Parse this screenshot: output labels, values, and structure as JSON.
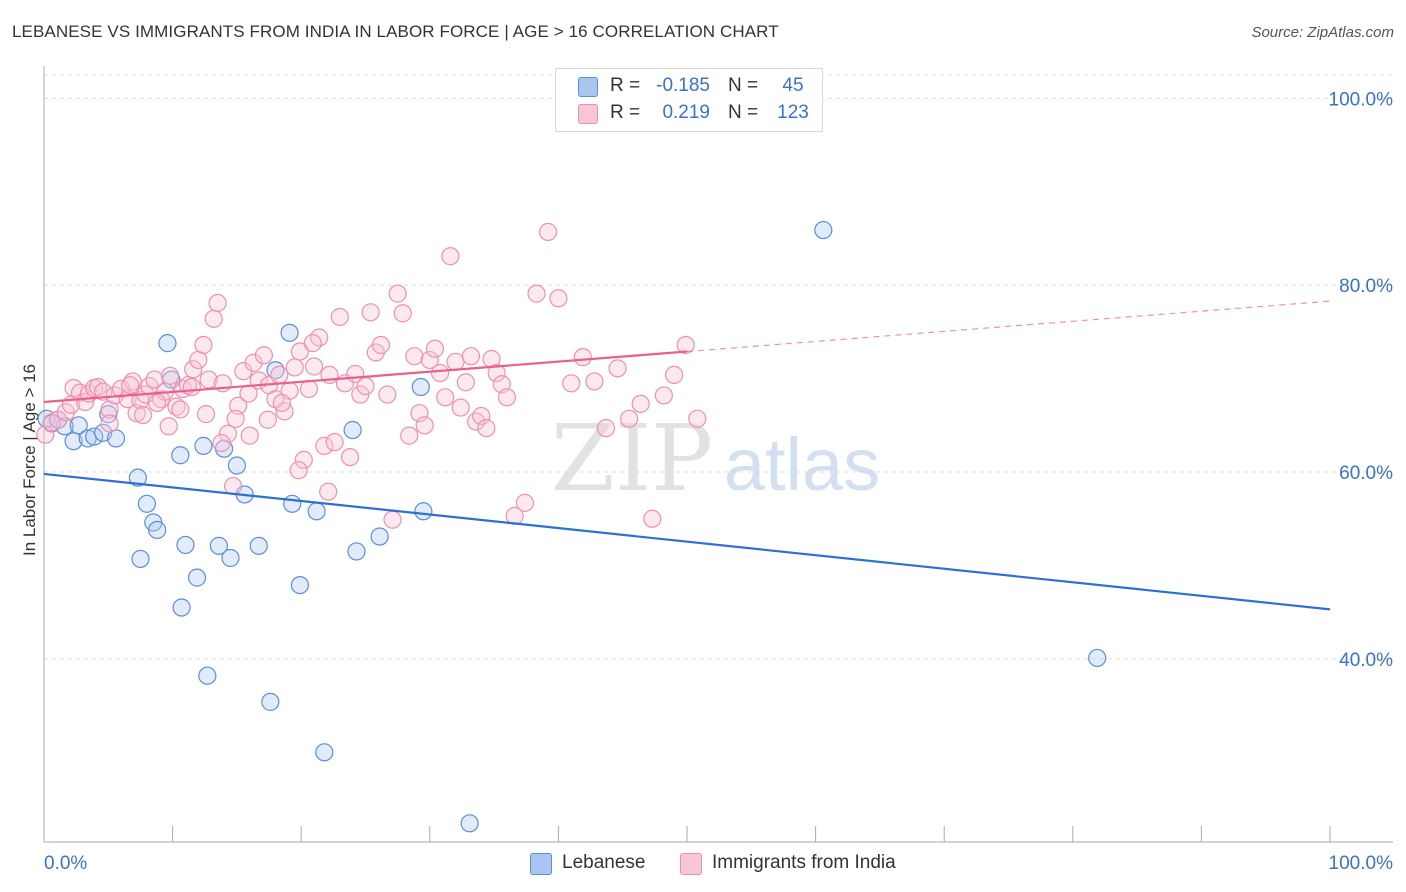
{
  "title": "LEBANESE VS IMMIGRANTS FROM INDIA IN LABOR FORCE | AGE > 16 CORRELATION CHART",
  "source": "Source: ZipAtlas.com",
  "watermark": {
    "zip": "ZIP",
    "atlas": "atlas"
  },
  "legend": {
    "rows": [
      {
        "r_label": "R =",
        "r_value": "-0.185",
        "n_label": "N =",
        "n_value": "45"
      },
      {
        "r_label": "R =",
        "r_value": "0.219",
        "n_label": "N =",
        "n_value": "123"
      }
    ]
  },
  "chart_data": {
    "type": "scatter",
    "title": "LEBANESE VS IMMIGRANTS FROM INDIA IN LABOR FORCE | AGE > 16 CORRELATION CHART",
    "xlabel": "",
    "ylabel": "In Labor Force | Age > 16",
    "xlim": [
      0,
      100
    ],
    "ylim": [
      20.4,
      102.5
    ],
    "x_tick_labels": [
      "0.0%",
      "100.0%"
    ],
    "y_ticks": [
      40,
      60,
      80,
      100
    ],
    "y_tick_labels": [
      "40.0%",
      "60.0%",
      "80.0%",
      "100.0%"
    ],
    "grid": true,
    "legend_position": "bottom",
    "colors": {
      "blue": "#5b8fd6",
      "pink": "#ef8fb0",
      "blue_line": "#2e6fd3",
      "pink_line": "#e8608f",
      "tick_text": "#3a72c8"
    },
    "series": [
      {
        "name": "Lebanese",
        "color": "#5b8fd6",
        "R": -0.185,
        "N": 45,
        "trend": {
          "x": [
            0,
            100
          ],
          "y": [
            59.8,
            45.3
          ]
        },
        "points": [
          [
            0.2,
            65.7
          ],
          [
            0.6,
            65.2
          ],
          [
            1.1,
            65.6
          ],
          [
            1.6,
            64.9
          ],
          [
            2.3,
            63.3
          ],
          [
            2.7,
            65.0
          ],
          [
            3.4,
            63.6
          ],
          [
            3.9,
            63.8
          ],
          [
            4.6,
            64.2
          ],
          [
            5.0,
            66.2
          ],
          [
            5.6,
            63.6
          ],
          [
            7.3,
            59.4
          ],
          [
            7.5,
            50.7
          ],
          [
            8.0,
            56.6
          ],
          [
            8.5,
            54.6
          ],
          [
            8.8,
            53.8
          ],
          [
            9.9,
            69.9
          ],
          [
            9.6,
            73.8
          ],
          [
            10.6,
            61.8
          ],
          [
            11.0,
            52.2
          ],
          [
            10.7,
            45.5
          ],
          [
            11.9,
            48.7
          ],
          [
            12.4,
            62.8
          ],
          [
            12.7,
            38.2
          ],
          [
            13.6,
            52.1
          ],
          [
            14.0,
            62.5
          ],
          [
            14.5,
            50.8
          ],
          [
            15.0,
            60.7
          ],
          [
            15.6,
            57.6
          ],
          [
            16.7,
            52.1
          ],
          [
            17.6,
            35.4
          ],
          [
            18.0,
            70.9
          ],
          [
            19.1,
            74.9
          ],
          [
            19.3,
            56.6
          ],
          [
            19.9,
            47.9
          ],
          [
            21.2,
            55.8
          ],
          [
            21.8,
            30.0
          ],
          [
            24.0,
            64.5
          ],
          [
            24.3,
            51.5
          ],
          [
            26.1,
            53.1
          ],
          [
            29.3,
            69.1
          ],
          [
            29.5,
            55.8
          ],
          [
            33.1,
            22.4
          ],
          [
            60.6,
            85.9
          ],
          [
            81.9,
            40.1
          ]
        ]
      },
      {
        "name": "Immigrants from India",
        "color": "#ef8fb0",
        "R": 0.219,
        "N": 123,
        "trend": {
          "x": [
            0,
            50
          ],
          "y": [
            67.5,
            72.9
          ],
          "dashed_to": {
            "x": 100,
            "y": 78.3
          }
        },
        "points": [
          [
            0.1,
            64.0
          ],
          [
            0.6,
            65.3
          ],
          [
            1.1,
            65.6
          ],
          [
            1.7,
            66.4
          ],
          [
            2.1,
            67.2
          ],
          [
            2.3,
            69.0
          ],
          [
            2.8,
            68.5
          ],
          [
            3.2,
            67.5
          ],
          [
            3.5,
            68.4
          ],
          [
            3.9,
            69.0
          ],
          [
            4.2,
            69.1
          ],
          [
            4.6,
            68.6
          ],
          [
            5.1,
            66.7
          ],
          [
            5.5,
            68.2
          ],
          [
            6.0,
            68.9
          ],
          [
            6.5,
            67.8
          ],
          [
            6.9,
            69.7
          ],
          [
            7.2,
            66.3
          ],
          [
            7.5,
            67.7
          ],
          [
            7.9,
            68.3
          ],
          [
            8.2,
            69.2
          ],
          [
            8.6,
            69.9
          ],
          [
            9.1,
            67.8
          ],
          [
            9.4,
            68.6
          ],
          [
            9.8,
            70.3
          ],
          [
            10.3,
            67.0
          ],
          [
            10.8,
            68.9
          ],
          [
            11.2,
            69.3
          ],
          [
            11.6,
            71.0
          ],
          [
            12.0,
            72.0
          ],
          [
            12.4,
            73.6
          ],
          [
            12.8,
            69.9
          ],
          [
            13.2,
            76.4
          ],
          [
            13.5,
            78.1
          ],
          [
            13.9,
            69.5
          ],
          [
            14.3,
            64.1
          ],
          [
            14.7,
            58.5
          ],
          [
            15.1,
            67.1
          ],
          [
            15.5,
            70.8
          ],
          [
            15.9,
            68.4
          ],
          [
            16.3,
            71.7
          ],
          [
            16.7,
            69.8
          ],
          [
            17.1,
            72.5
          ],
          [
            17.5,
            69.3
          ],
          [
            18.0,
            67.8
          ],
          [
            18.3,
            70.4
          ],
          [
            18.7,
            66.5
          ],
          [
            19.1,
            68.7
          ],
          [
            19.5,
            71.2
          ],
          [
            19.9,
            72.9
          ],
          [
            20.2,
            61.3
          ],
          [
            20.6,
            68.9
          ],
          [
            21.0,
            71.3
          ],
          [
            21.4,
            74.4
          ],
          [
            21.8,
            62.8
          ],
          [
            22.2,
            70.4
          ],
          [
            22.6,
            63.2
          ],
          [
            23.0,
            76.6
          ],
          [
            23.4,
            69.5
          ],
          [
            23.8,
            61.6
          ],
          [
            24.2,
            70.5
          ],
          [
            24.6,
            68.3
          ],
          [
            25.0,
            69.2
          ],
          [
            25.4,
            77.1
          ],
          [
            25.8,
            72.8
          ],
          [
            26.2,
            73.6
          ],
          [
            26.7,
            68.3
          ],
          [
            27.1,
            54.9
          ],
          [
            27.5,
            79.1
          ],
          [
            27.9,
            77.0
          ],
          [
            28.4,
            63.9
          ],
          [
            28.8,
            72.4
          ],
          [
            29.2,
            66.3
          ],
          [
            29.6,
            65.0
          ],
          [
            30.0,
            72.0
          ],
          [
            30.4,
            73.2
          ],
          [
            30.8,
            70.6
          ],
          [
            31.2,
            68.0
          ],
          [
            31.6,
            83.1
          ],
          [
            32.0,
            71.8
          ],
          [
            32.4,
            66.9
          ],
          [
            32.8,
            69.6
          ],
          [
            33.2,
            72.4
          ],
          [
            33.6,
            65.4
          ],
          [
            34.0,
            66.0
          ],
          [
            34.4,
            64.7
          ],
          [
            34.8,
            72.1
          ],
          [
            35.2,
            70.6
          ],
          [
            35.6,
            69.4
          ],
          [
            36.0,
            68.0
          ],
          [
            36.6,
            55.3
          ],
          [
            37.4,
            56.7
          ],
          [
            38.3,
            79.1
          ],
          [
            39.2,
            85.7
          ],
          [
            40.0,
            78.6
          ],
          [
            41.0,
            69.5
          ],
          [
            41.9,
            72.3
          ],
          [
            42.8,
            69.7
          ],
          [
            43.7,
            64.7
          ],
          [
            44.6,
            71.1
          ],
          [
            45.5,
            65.7
          ],
          [
            46.4,
            67.3
          ],
          [
            47.3,
            55.0
          ],
          [
            48.2,
            68.2
          ],
          [
            49.0,
            70.4
          ],
          [
            49.9,
            73.6
          ],
          [
            50.8,
            65.7
          ],
          [
            5.1,
            65.2
          ],
          [
            6.7,
            69.3
          ],
          [
            7.7,
            66.1
          ],
          [
            8.8,
            67.4
          ],
          [
            9.7,
            64.9
          ],
          [
            10.6,
            66.7
          ],
          [
            11.5,
            69.1
          ],
          [
            12.6,
            66.2
          ],
          [
            13.8,
            63.1
          ],
          [
            14.9,
            65.7
          ],
          [
            16.0,
            63.9
          ],
          [
            17.4,
            65.6
          ],
          [
            18.5,
            67.4
          ],
          [
            19.8,
            60.2
          ],
          [
            20.9,
            73.8
          ],
          [
            22.1,
            57.9
          ]
        ]
      }
    ]
  },
  "legend_bottom": [
    {
      "label": "Lebanese",
      "color": "#a9c7ee",
      "border": "#5b8fd6"
    },
    {
      "label": "Immigrants from India",
      "color": "#f8c6d7",
      "border": "#ef8fb0"
    }
  ]
}
